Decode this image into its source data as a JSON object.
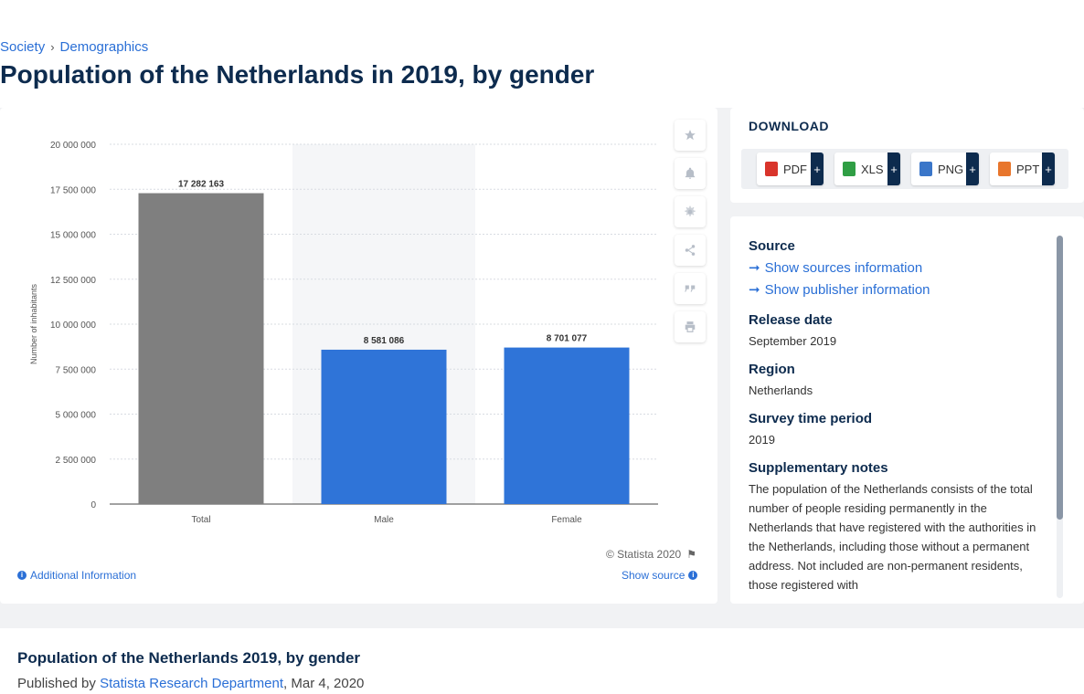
{
  "breadcrumb": {
    "items": [
      "Society",
      "Demographics"
    ]
  },
  "page_title": "Population of the Netherlands in 2019, by gender",
  "chart_data": {
    "type": "bar",
    "categories": [
      "Total",
      "Male",
      "Female"
    ],
    "values": [
      17282163,
      8581086,
      8701077
    ],
    "value_labels": [
      "17 282 163",
      "8 581 086",
      "8 701 077"
    ],
    "bar_colors": [
      "#7f7f7f",
      "#2f74d8",
      "#2f74d8"
    ],
    "highlight_band_category": "Male",
    "ylabel": "Number of inhabitants",
    "ylim": [
      0,
      20000000
    ],
    "yticks": [
      0,
      2500000,
      5000000,
      7500000,
      10000000,
      12500000,
      15000000,
      17500000,
      20000000
    ],
    "ytick_labels": [
      "0",
      "2 500 000",
      "5 000 000",
      "7 500 000",
      "10 000 000",
      "12 500 000",
      "15 000 000",
      "17 500 000",
      "20 000 000"
    ],
    "grid": true
  },
  "chart_footer": {
    "copyright": "© Statista 2020",
    "additional_info": "Additional Information",
    "show_source": "Show source"
  },
  "tools": [
    "star-icon",
    "bell-icon",
    "gear-icon",
    "share-icon",
    "quote-icon",
    "print-icon"
  ],
  "download": {
    "title": "DOWNLOAD",
    "buttons": [
      {
        "label": "PDF",
        "icon": "pdf-file-icon",
        "color": "#d9342b"
      },
      {
        "label": "XLS",
        "icon": "xls-file-icon",
        "color": "#2f9e44"
      },
      {
        "label": "PNG",
        "icon": "png-file-icon",
        "color": "#3a76c9"
      },
      {
        "label": "PPT",
        "icon": "ppt-file-icon",
        "color": "#e8762c"
      }
    ],
    "plus": "+"
  },
  "source": {
    "source_head": "Source",
    "show_sources": "Show sources information",
    "show_publisher": "Show publisher information",
    "release_head": "Release date",
    "release_val": "September 2019",
    "region_head": "Region",
    "region_val": "Netherlands",
    "period_head": "Survey time period",
    "period_val": "2019",
    "notes_head": "Supplementary notes",
    "notes_val": "The population of the Netherlands consists of the total number of people residing permanently in the Netherlands that have registered with the authorities in the Netherlands, including those without a permanent address. Not included are non-permanent residents, those registered with"
  },
  "publisher": {
    "title": "Population of the Netherlands 2019, by gender",
    "published_by": "Published by",
    "publisher_name": "Statista Research Department",
    "date": ", Mar 4, 2020"
  },
  "colors": {
    "accent": "#2a6fd6",
    "navy": "#0d2b4e"
  }
}
